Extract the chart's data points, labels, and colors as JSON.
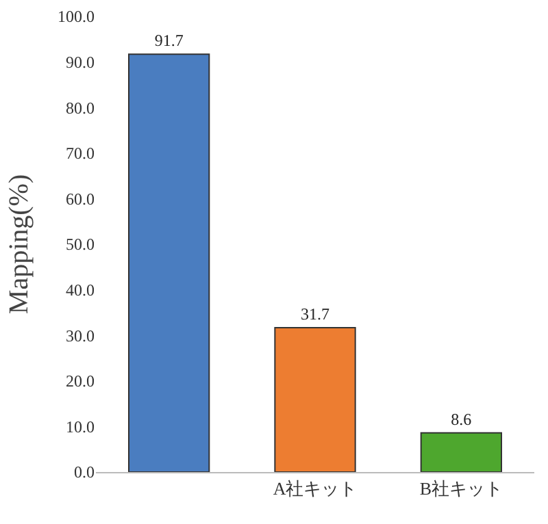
{
  "chart_data": {
    "type": "bar",
    "ylabel": "Mapping(%)",
    "categories": [
      null,
      "A社キット",
      "B社キット"
    ],
    "values": [
      91.7,
      31.7,
      8.6
    ],
    "colors": [
      "#4a7dc0",
      "#ed7d31",
      "#4ea72e"
    ],
    "ylim": [
      0,
      100
    ],
    "yticks": [
      {
        "value": 0,
        "label": "0.0"
      },
      {
        "value": 10,
        "label": "10.0"
      },
      {
        "value": 20,
        "label": "20.0"
      },
      {
        "value": 30,
        "label": "30.0"
      },
      {
        "value": 40,
        "label": "40.0"
      },
      {
        "value": 50,
        "label": "50.0"
      },
      {
        "value": 60,
        "label": "60.0"
      },
      {
        "value": 70,
        "label": "70.0"
      },
      {
        "value": 80,
        "label": "80.0"
      },
      {
        "value": 90,
        "label": "90.0"
      },
      {
        "value": 100,
        "label": "100.0"
      }
    ],
    "data_labels": true,
    "grid": false,
    "legend": false
  }
}
